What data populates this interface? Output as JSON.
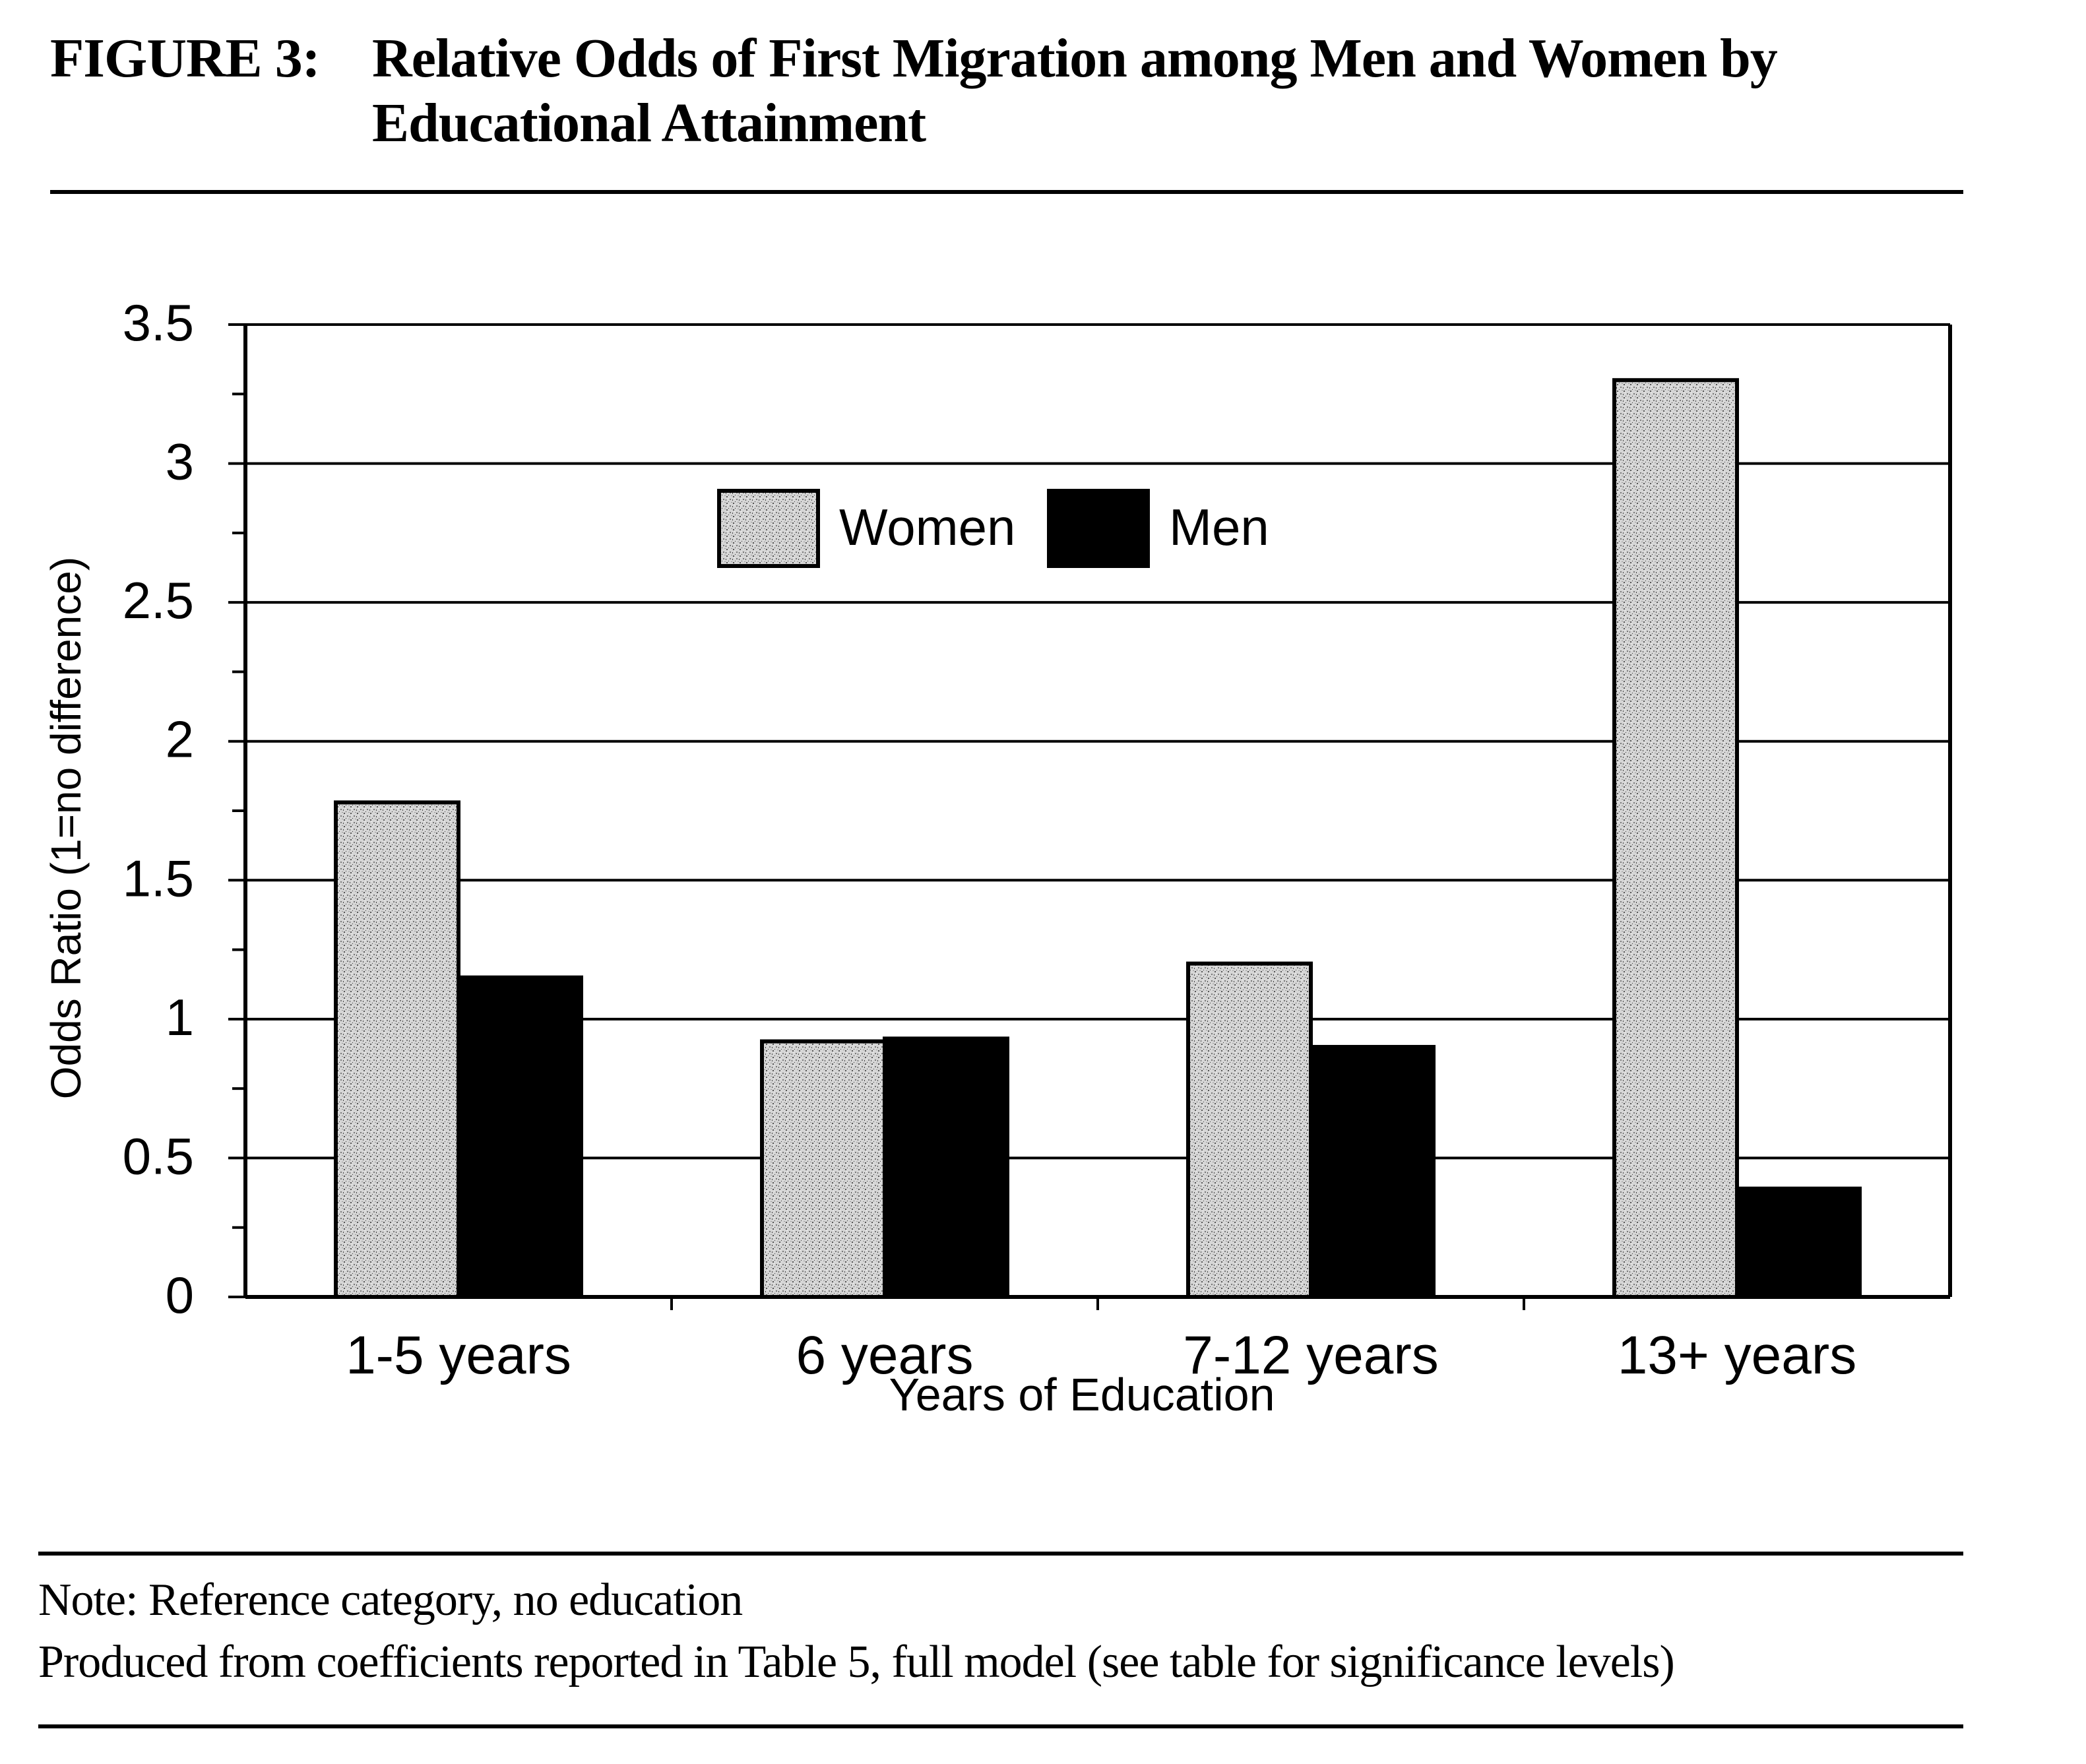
{
  "figure": {
    "label": "FIGURE 3:",
    "title": "Relative Odds of First Migration among Men and Women by Educational Attainment"
  },
  "notes": {
    "line1": "Note: Reference category, no education",
    "line2": "Produced from coefficients reported in Table 5, full model (see table for significance levels)"
  },
  "colors": {
    "women_fill": "#c8c8c8",
    "men_fill": "#000000",
    "grid": "#000000"
  },
  "chart_data": {
    "type": "bar",
    "title": "",
    "xlabel": "Years of Education",
    "ylabel": "Odds Ratio (1=no difference)",
    "categories": [
      "1-5 years",
      "6 years",
      "7-12 years",
      "13+ years"
    ],
    "series": [
      {
        "name": "Women",
        "values": [
          1.78,
          0.92,
          1.2,
          3.3
        ]
      },
      {
        "name": "Men",
        "values": [
          1.15,
          0.93,
          0.9,
          0.39
        ]
      }
    ],
    "ylim": [
      0,
      3.5
    ],
    "yticks": [
      "0",
      "0.5",
      "1",
      "1.5",
      "2",
      "2.5",
      "3",
      "3.5"
    ],
    "yticks_values": [
      0,
      0.5,
      1,
      1.5,
      2,
      2.5,
      3,
      3.5
    ],
    "grid": true,
    "legend": "top-center"
  }
}
